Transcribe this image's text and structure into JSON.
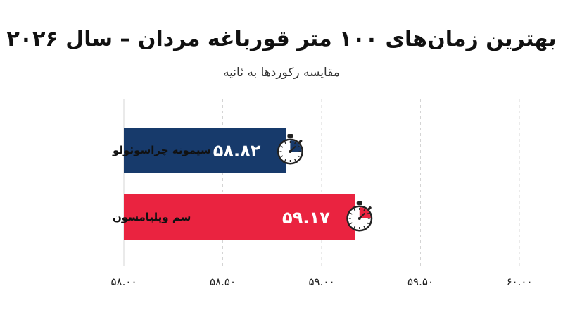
{
  "chart_data": {
    "type": "bar",
    "orientation": "horizontal",
    "title": "بهترین زمان‌های ۱۰۰ متر قورباغه مردان – سال ۲۰۲۶",
    "subtitle": "مقایسه رکوردها به ثانیه",
    "categories": [
      "سیمونه چراسوئولو",
      "سم ویلیامسون"
    ],
    "values": [
      58.82,
      59.17
    ],
    "value_labels": [
      "۵۸.۸۲",
      "۵۹.۱۷"
    ],
    "bar_colors": [
      "#173a6b",
      "#ea2340"
    ],
    "xlim": [
      58.0,
      60.0
    ],
    "xticks": [
      58.0,
      58.5,
      59.0,
      59.5,
      60.0
    ],
    "xtick_labels": [
      "۵۸.۰۰",
      "۵۸.۵۰",
      "۵۹.۰۰",
      "۵۹.۵۰",
      "۶۰.۰۰"
    ],
    "grid": "vertical-dashed",
    "bar_icon": "stopwatch-icon"
  }
}
